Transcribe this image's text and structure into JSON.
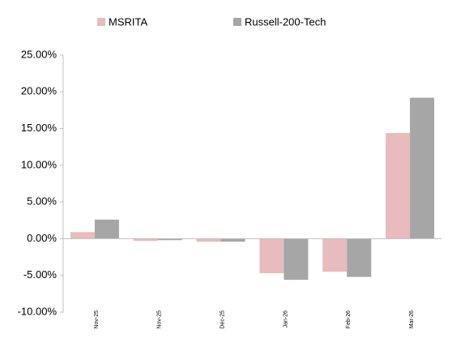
{
  "chart_data": {
    "type": "bar",
    "categories": [
      "Nov-25",
      "Nov-25",
      "Dec-25",
      "Jan-26",
      "Feb-26",
      "Mar-26"
    ],
    "series": [
      {
        "name": "MSRITA",
        "color": "#e8bcbc",
        "values": [
          0.9,
          -0.3,
          -0.4,
          -4.7,
          -4.5,
          14.4
        ]
      },
      {
        "name": "Russell-200-Tech",
        "color": "#a6a6a6",
        "values": [
          2.6,
          -0.2,
          -0.4,
          -5.6,
          -5.2,
          19.2
        ]
      }
    ],
    "ylim": [
      -10,
      25
    ],
    "yticks": [
      {
        "value": -10,
        "label": "-10.00%"
      },
      {
        "value": -5,
        "label": "-5.00%"
      },
      {
        "value": 0,
        "label": "0.00%"
      },
      {
        "value": 5,
        "label": "5.00%"
      },
      {
        "value": 10,
        "label": "10.00%"
      },
      {
        "value": 15,
        "label": "15.00%"
      },
      {
        "value": 20,
        "label": "20.00%"
      },
      {
        "value": 25,
        "label": "25.00%"
      }
    ],
    "grid": false,
    "legend": "top"
  }
}
